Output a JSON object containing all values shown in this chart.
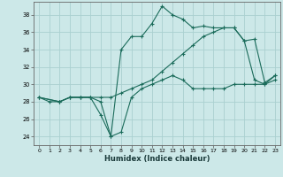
{
  "xlabel": "Humidex (Indice chaleur)",
  "bg_color": "#cce8e8",
  "grid_color": "#aad0d0",
  "line_color": "#1a6b5a",
  "xlim": [
    -0.5,
    23.5
  ],
  "ylim": [
    23.0,
    39.5
  ],
  "yticks": [
    24,
    26,
    28,
    30,
    32,
    34,
    36,
    38
  ],
  "xticks": [
    0,
    1,
    2,
    3,
    4,
    5,
    6,
    7,
    8,
    9,
    10,
    11,
    12,
    13,
    14,
    15,
    16,
    17,
    18,
    19,
    20,
    21,
    22,
    23
  ],
  "line1_x": [
    0,
    1,
    2,
    3,
    4,
    5,
    6,
    7,
    8,
    9,
    10,
    11,
    12,
    13,
    14,
    15,
    16,
    17,
    18,
    19,
    20,
    21,
    22,
    23
  ],
  "line1_y": [
    28.5,
    28.0,
    28.0,
    28.5,
    28.5,
    28.5,
    26.5,
    24.0,
    34.0,
    35.5,
    35.5,
    37.0,
    39.0,
    38.0,
    37.5,
    36.5,
    36.7,
    36.5,
    36.5,
    36.5,
    35.0,
    30.5,
    30.0,
    31.0
  ],
  "line2_x": [
    0,
    2,
    3,
    4,
    5,
    6,
    7,
    8,
    9,
    10,
    11,
    12,
    13,
    14,
    15,
    16,
    17,
    18,
    19,
    20,
    21,
    22,
    23
  ],
  "line2_y": [
    28.5,
    28.0,
    28.5,
    28.5,
    28.5,
    28.5,
    28.5,
    29.0,
    29.5,
    30.0,
    30.5,
    31.5,
    32.5,
    33.5,
    34.5,
    35.5,
    36.0,
    36.5,
    36.5,
    35.0,
    35.2,
    30.2,
    31.0
  ],
  "line3_x": [
    0,
    2,
    3,
    4,
    5,
    6,
    7,
    8,
    9,
    10,
    11,
    12,
    13,
    14,
    15,
    16,
    17,
    18,
    19,
    20,
    21,
    22,
    23
  ],
  "line3_y": [
    28.5,
    28.0,
    28.5,
    28.5,
    28.5,
    28.0,
    24.0,
    24.5,
    28.5,
    29.5,
    30.0,
    30.5,
    31.0,
    30.5,
    29.5,
    29.5,
    29.5,
    29.5,
    30.0,
    30.0,
    30.0,
    30.0,
    30.5
  ]
}
